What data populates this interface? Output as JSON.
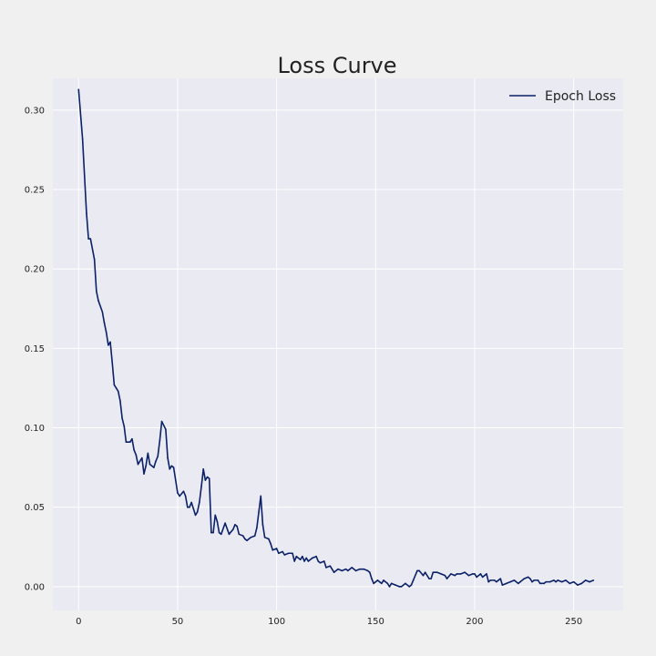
{
  "colors": {
    "figure_background": "#f0f0f0",
    "plot_background": "#eaeaf2",
    "grid": "#ffffff",
    "series": "#0b2168",
    "text": "#222222"
  },
  "chart_data": {
    "type": "line",
    "title": "Loss Curve",
    "xlabel": "",
    "ylabel": "",
    "xlim": [
      -13,
      275
    ],
    "ylim": [
      -0.015,
      0.32
    ],
    "xticks": [
      0,
      50,
      100,
      150,
      200,
      250
    ],
    "yticks": [
      0.0,
      0.05,
      0.1,
      0.15,
      0.2,
      0.25,
      0.3
    ],
    "xtick_labels": [
      "0",
      "50",
      "100",
      "150",
      "200",
      "250"
    ],
    "ytick_labels": [
      "0.00",
      "0.05",
      "0.10",
      "0.15",
      "0.20",
      "0.25",
      "0.30"
    ],
    "grid": true,
    "legend": {
      "position": "top-right",
      "entries": [
        "Epoch Loss"
      ]
    },
    "series": [
      {
        "name": "Epoch Loss",
        "points": [
          [
            0,
            0.313
          ],
          [
            2,
            0.282
          ],
          [
            4,
            0.235
          ],
          [
            5,
            0.219
          ],
          [
            6,
            0.219
          ],
          [
            8,
            0.206
          ],
          [
            9,
            0.186
          ],
          [
            10,
            0.18
          ],
          [
            12,
            0.173
          ],
          [
            13,
            0.166
          ],
          [
            14,
            0.16
          ],
          [
            15,
            0.152
          ],
          [
            16,
            0.154
          ],
          [
            17,
            0.141
          ],
          [
            18,
            0.127
          ],
          [
            19,
            0.125
          ],
          [
            20,
            0.123
          ],
          [
            21,
            0.117
          ],
          [
            22,
            0.106
          ],
          [
            23,
            0.101
          ],
          [
            24,
            0.091
          ],
          [
            26,
            0.091
          ],
          [
            27,
            0.093
          ],
          [
            28,
            0.086
          ],
          [
            29,
            0.083
          ],
          [
            30,
            0.077
          ],
          [
            32,
            0.081
          ],
          [
            33,
            0.071
          ],
          [
            34,
            0.076
          ],
          [
            35,
            0.084
          ],
          [
            36,
            0.077
          ],
          [
            38,
            0.075
          ],
          [
            39,
            0.079
          ],
          [
            40,
            0.082
          ],
          [
            41,
            0.092
          ],
          [
            42,
            0.104
          ],
          [
            44,
            0.099
          ],
          [
            45,
            0.081
          ],
          [
            46,
            0.074
          ],
          [
            47,
            0.076
          ],
          [
            48,
            0.075
          ],
          [
            49,
            0.067
          ],
          [
            50,
            0.059
          ],
          [
            51,
            0.057
          ],
          [
            53,
            0.06
          ],
          [
            54,
            0.057
          ],
          [
            55,
            0.05
          ],
          [
            56,
            0.05
          ],
          [
            57,
            0.053
          ],
          [
            58,
            0.049
          ],
          [
            59,
            0.045
          ],
          [
            60,
            0.047
          ],
          [
            61,
            0.053
          ],
          [
            62,
            0.063
          ],
          [
            63,
            0.074
          ],
          [
            64,
            0.067
          ],
          [
            65,
            0.069
          ],
          [
            66,
            0.068
          ],
          [
            67,
            0.034
          ],
          [
            68,
            0.034
          ],
          [
            69,
            0.045
          ],
          [
            70,
            0.041
          ],
          [
            71,
            0.034
          ],
          [
            72,
            0.033
          ],
          [
            74,
            0.04
          ],
          [
            76,
            0.033
          ],
          [
            78,
            0.036
          ],
          [
            79,
            0.039
          ],
          [
            80,
            0.038
          ],
          [
            81,
            0.033
          ],
          [
            83,
            0.032
          ],
          [
            84,
            0.03
          ],
          [
            85,
            0.029
          ],
          [
            87,
            0.031
          ],
          [
            89,
            0.032
          ],
          [
            90,
            0.037
          ],
          [
            91,
            0.047
          ],
          [
            92,
            0.057
          ],
          [
            93,
            0.039
          ],
          [
            94,
            0.031
          ],
          [
            96,
            0.03
          ],
          [
            97,
            0.027
          ],
          [
            98,
            0.023
          ],
          [
            100,
            0.024
          ],
          [
            101,
            0.021
          ],
          [
            103,
            0.022
          ],
          [
            104,
            0.02
          ],
          [
            106,
            0.021
          ],
          [
            108,
            0.021
          ],
          [
            109,
            0.016
          ],
          [
            110,
            0.019
          ],
          [
            112,
            0.017
          ],
          [
            113,
            0.019
          ],
          [
            114,
            0.016
          ],
          [
            115,
            0.018
          ],
          [
            116,
            0.016
          ],
          [
            118,
            0.018
          ],
          [
            120,
            0.019
          ],
          [
            121,
            0.016
          ],
          [
            122,
            0.015
          ],
          [
            124,
            0.016
          ],
          [
            125,
            0.012
          ],
          [
            127,
            0.013
          ],
          [
            129,
            0.009
          ],
          [
            131,
            0.011
          ],
          [
            133,
            0.01
          ],
          [
            135,
            0.011
          ],
          [
            136,
            0.01
          ],
          [
            137,
            0.011
          ],
          [
            138,
            0.012
          ],
          [
            140,
            0.01
          ],
          [
            142,
            0.011
          ],
          [
            144,
            0.011
          ],
          [
            146,
            0.01
          ],
          [
            147,
            0.009
          ],
          [
            148,
            0.005
          ],
          [
            149,
            0.002
          ],
          [
            150,
            0.003
          ],
          [
            151,
            0.004
          ],
          [
            152,
            0.003
          ],
          [
            153,
            0.002
          ],
          [
            154,
            0.004
          ],
          [
            156,
            0.002
          ],
          [
            157,
            0.0
          ],
          [
            158,
            0.002
          ],
          [
            160,
            0.001
          ],
          [
            162,
            0.0
          ],
          [
            163,
            0.0
          ],
          [
            165,
            0.002
          ],
          [
            167,
            0.0
          ],
          [
            168,
            0.001
          ],
          [
            169,
            0.004
          ],
          [
            171,
            0.01
          ],
          [
            172,
            0.01
          ],
          [
            174,
            0.007
          ],
          [
            175,
            0.009
          ],
          [
            177,
            0.005
          ],
          [
            178,
            0.005
          ],
          [
            179,
            0.009
          ],
          [
            181,
            0.009
          ],
          [
            183,
            0.008
          ],
          [
            185,
            0.007
          ],
          [
            186,
            0.005
          ],
          [
            188,
            0.008
          ],
          [
            190,
            0.007
          ],
          [
            191,
            0.008
          ],
          [
            193,
            0.008
          ],
          [
            195,
            0.009
          ],
          [
            197,
            0.007
          ],
          [
            199,
            0.008
          ],
          [
            200,
            0.008
          ],
          [
            201,
            0.006
          ],
          [
            203,
            0.008
          ],
          [
            204,
            0.006
          ],
          [
            206,
            0.008
          ],
          [
            207,
            0.003
          ],
          [
            208,
            0.004
          ],
          [
            210,
            0.004
          ],
          [
            211,
            0.003
          ],
          [
            212,
            0.004
          ],
          [
            213,
            0.005
          ],
          [
            214,
            0.001
          ],
          [
            216,
            0.002
          ],
          [
            218,
            0.003
          ],
          [
            220,
            0.004
          ],
          [
            222,
            0.002
          ],
          [
            223,
            0.003
          ],
          [
            225,
            0.005
          ],
          [
            227,
            0.006
          ],
          [
            228,
            0.005
          ],
          [
            229,
            0.003
          ],
          [
            230,
            0.004
          ],
          [
            232,
            0.004
          ],
          [
            233,
            0.002
          ],
          [
            235,
            0.002
          ],
          [
            236,
            0.003
          ],
          [
            238,
            0.003
          ],
          [
            240,
            0.004
          ],
          [
            241,
            0.003
          ],
          [
            242,
            0.004
          ],
          [
            244,
            0.003
          ],
          [
            246,
            0.004
          ],
          [
            248,
            0.002
          ],
          [
            250,
            0.003
          ],
          [
            252,
            0.001
          ],
          [
            254,
            0.002
          ],
          [
            256,
            0.004
          ],
          [
            258,
            0.003
          ],
          [
            260,
            0.004
          ]
        ]
      }
    ]
  }
}
